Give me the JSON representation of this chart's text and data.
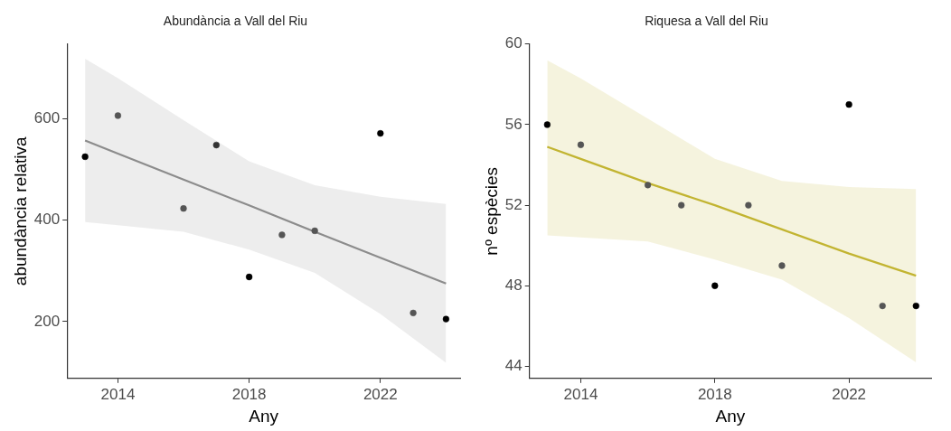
{
  "chart_data": [
    {
      "type": "scatter",
      "title": "Abundància a Vall del Riu",
      "xlabel": "Any",
      "ylabel": "abundància relativa",
      "xlim": [
        2012.45,
        2024.43
      ],
      "xticks": [
        2014,
        2018,
        2022
      ],
      "ylim": [
        88,
        747
      ],
      "yticks": [
        200,
        400,
        600
      ],
      "grid": false,
      "legend": false,
      "series": [
        {
          "marker": "circle",
          "color": "#222222",
          "colors": [
            "#000000",
            "#555555",
            "#555555",
            "#333333",
            "#000000",
            "#555555",
            "#555555",
            "#000000",
            "#555555",
            "#000000"
          ],
          "x": [
            2013,
            2014,
            2016,
            2017,
            2018,
            2019,
            2020,
            2022,
            2023,
            2024
          ],
          "values": [
            525,
            606,
            423,
            548,
            288,
            371,
            379,
            571,
            217,
            205
          ]
        },
        {
          "type": "line",
          "marker": "none",
          "color": "#8c8c8c",
          "x": [
            2013,
            2014,
            2016,
            2018,
            2020,
            2022,
            2024
          ],
          "values": [
            557,
            531,
            480,
            429,
            377,
            326,
            275
          ],
          "lower": [
            396,
            390,
            377,
            342,
            296,
            215,
            119
          ],
          "upper": [
            718,
            680,
            597,
            516,
            469,
            446,
            432
          ]
        }
      ]
    },
    {
      "type": "scatter",
      "title": "Riquesa a Vall del Riu",
      "xlabel": "Any",
      "ylabel": "nº espècies",
      "xlim": [
        2012.47,
        2024.45
      ],
      "xticks": [
        2014,
        2018,
        2022
      ],
      "ylim": [
        43.4,
        60
      ],
      "yticks": [
        44,
        48,
        52,
        56,
        60
      ],
      "grid": false,
      "legend": false,
      "series": [
        {
          "marker": "circle",
          "color": "#222222",
          "colors": [
            "#000000",
            "#555555",
            "#555555",
            "#555555",
            "#000000",
            "#555555",
            "#555555",
            "#000000",
            "#555555",
            "#000000"
          ],
          "x": [
            2013,
            2014,
            2016,
            2017,
            2018,
            2019,
            2020,
            2022,
            2023,
            2024
          ],
          "values": [
            56,
            55,
            53,
            52,
            48,
            52,
            49,
            57,
            47,
            47
          ]
        },
        {
          "type": "line",
          "marker": "none",
          "color": "#c2b431",
          "x": [
            2013,
            2014,
            2016,
            2018,
            2020,
            2022,
            2024
          ],
          "values": [
            54.9,
            54.3,
            53.1,
            52.0,
            50.8,
            49.6,
            48.5
          ],
          "lower": [
            50.5,
            50.4,
            50.2,
            49.3,
            48.3,
            46.4,
            44.2
          ],
          "upper": [
            59.2,
            58.3,
            56.3,
            54.3,
            53.2,
            52.9,
            52.8
          ]
        }
      ]
    }
  ]
}
